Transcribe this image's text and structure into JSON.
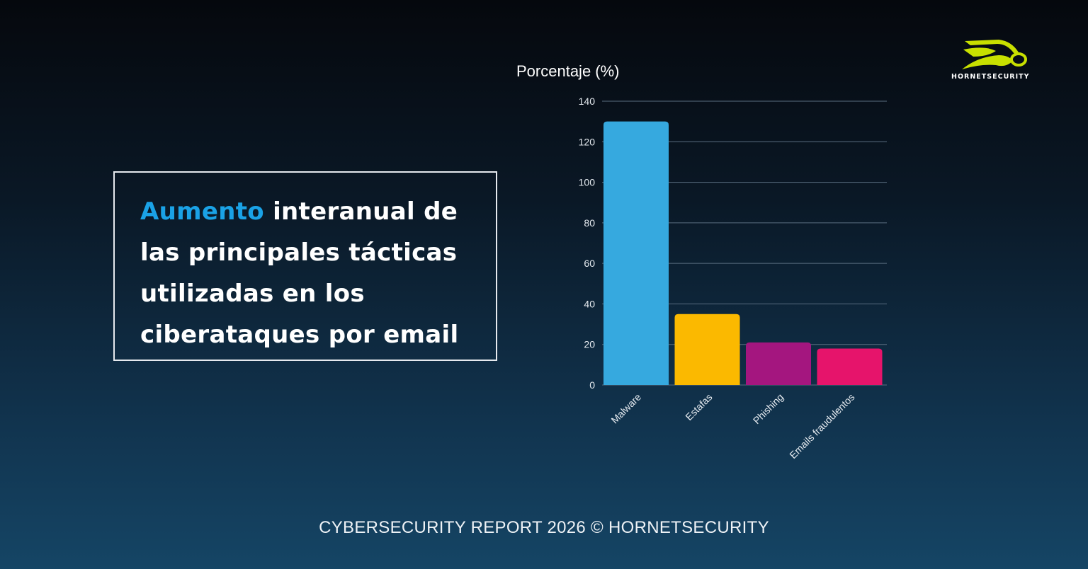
{
  "headline": {
    "accent": "Aumento",
    "rest": " interanual de las principales tácticas utilizadas en los ciberataques por email"
  },
  "brand": {
    "name": "HORNETSECURITY",
    "logo_color": "#c8e000"
  },
  "footer": "CYBERSECURITY REPORT 2026 © HORNETSECURITY",
  "chart_data": {
    "type": "bar",
    "title": "",
    "ylabel": "Porcentaje (%)",
    "xlabel": "",
    "categories": [
      "Malware",
      "Estafas",
      "Phishing",
      "Emails fraudulentos"
    ],
    "values": [
      130,
      35,
      21,
      18
    ],
    "colors": [
      "#36a9df",
      "#fbb900",
      "#a4167f",
      "#e6146b"
    ],
    "ylim": [
      0,
      140
    ],
    "yticks": [
      0,
      20,
      40,
      60,
      80,
      100,
      120,
      140
    ],
    "grid": true
  }
}
